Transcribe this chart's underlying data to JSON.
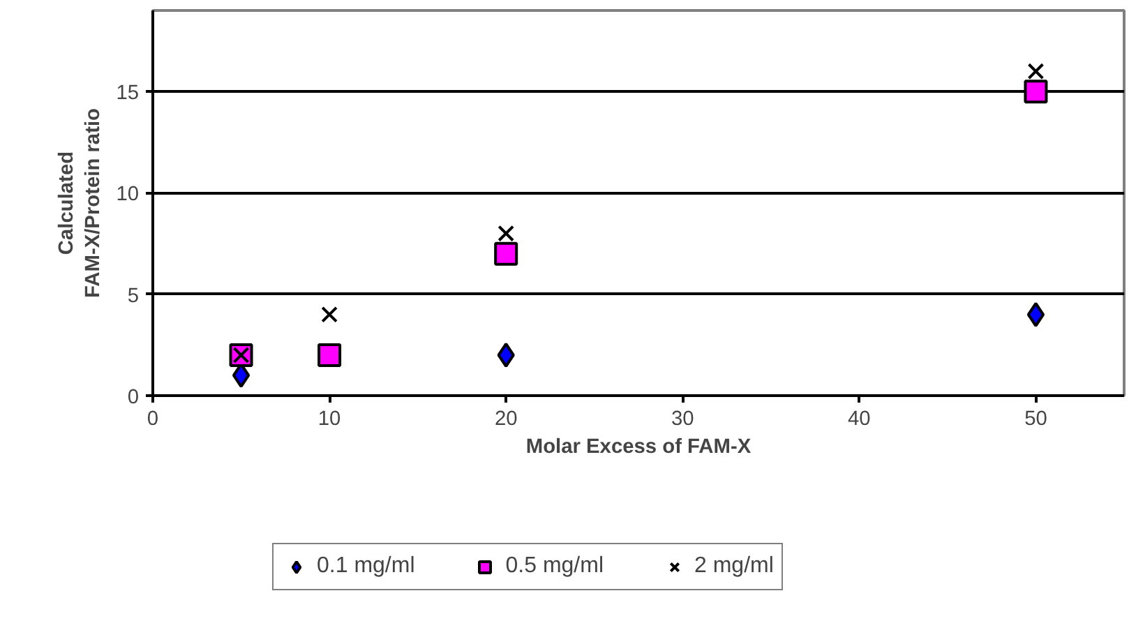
{
  "chart_data": {
    "type": "scatter",
    "xlabel": "Molar Excess of FAM-X",
    "ylabel": "Calculated\nFAM-X/Protein ratio",
    "xlim": [
      0,
      55
    ],
    "xticks": [
      0,
      10,
      20,
      30,
      40,
      50
    ],
    "ylim": [
      0,
      19
    ],
    "yticks": [
      0,
      5,
      10,
      15
    ],
    "grid": "y",
    "legend": "bottom",
    "series": [
      {
        "name": "0.1 mg/ml",
        "color": "#0000ff",
        "marker": "diamond",
        "x": [
          5,
          20,
          50
        ],
        "values": [
          1,
          2,
          4
        ]
      },
      {
        "name": "0.5 mg/ml",
        "color": "#ff00ff",
        "marker": "square",
        "x": [
          5,
          10,
          20,
          50
        ],
        "values": [
          2,
          2,
          7,
          15
        ]
      },
      {
        "name": "2 mg/ml",
        "color": "#000000",
        "marker": "cross",
        "x": [
          5,
          10,
          20,
          50
        ],
        "values": [
          2,
          4,
          8,
          16
        ]
      }
    ]
  }
}
